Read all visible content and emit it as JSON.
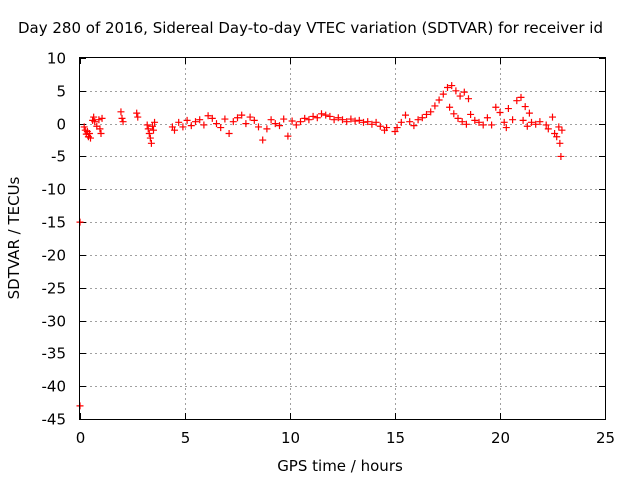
{
  "chart_data": {
    "type": "scatter",
    "title": "Day 280 of 2016, Sidereal Day-to-day VTEC variation (SDTVAR) for receiver id",
    "xlabel": "GPS time / hours",
    "ylabel": "SDTVAR / TECUs",
    "xlim": [
      0,
      25
    ],
    "ylim": [
      -45,
      10
    ],
    "xticks": [
      0,
      5,
      10,
      15,
      20,
      25
    ],
    "yticks": [
      10,
      5,
      0,
      -5,
      -10,
      -15,
      -20,
      -25,
      -30,
      -35,
      -40,
      -45
    ],
    "grid": true,
    "marker": "+",
    "series": [
      {
        "name": "SDTVAR",
        "color": "#ff0000",
        "points": [
          [
            0.0,
            -15.0
          ],
          [
            0.0,
            -43.0
          ],
          [
            0.2,
            -0.5
          ],
          [
            0.25,
            -1.0
          ],
          [
            0.3,
            -1.6
          ],
          [
            0.35,
            -1.2
          ],
          [
            0.4,
            -2.0
          ],
          [
            0.45,
            -1.5
          ],
          [
            0.5,
            -2.2
          ],
          [
            0.6,
            0.5
          ],
          [
            0.65,
            1.0
          ],
          [
            0.7,
            0.3
          ],
          [
            0.8,
            -0.4
          ],
          [
            0.9,
            0.6
          ],
          [
            0.95,
            -0.8
          ],
          [
            1.0,
            -1.5
          ],
          [
            1.05,
            0.8
          ],
          [
            1.95,
            1.8
          ],
          [
            2.0,
            0.8
          ],
          [
            2.05,
            0.3
          ],
          [
            2.7,
            1.6
          ],
          [
            2.75,
            1.0
          ],
          [
            3.2,
            -0.2
          ],
          [
            3.25,
            -0.8
          ],
          [
            3.3,
            -1.5
          ],
          [
            3.35,
            -2.2
          ],
          [
            3.4,
            -3.0
          ],
          [
            3.45,
            -0.4
          ],
          [
            3.5,
            -1.0
          ],
          [
            3.55,
            0.2
          ],
          [
            4.4,
            -0.5
          ],
          [
            4.5,
            -1.0
          ],
          [
            4.7,
            0.2
          ],
          [
            4.9,
            -0.5
          ],
          [
            5.1,
            0.5
          ],
          [
            5.3,
            -0.3
          ],
          [
            5.5,
            0.3
          ],
          [
            5.7,
            0.6
          ],
          [
            5.9,
            -0.2
          ],
          [
            6.1,
            1.2
          ],
          [
            6.3,
            0.8
          ],
          [
            6.5,
            0.0
          ],
          [
            6.7,
            -0.6
          ],
          [
            6.9,
            0.7
          ],
          [
            7.1,
            -1.5
          ],
          [
            7.3,
            0.3
          ],
          [
            7.5,
            0.9
          ],
          [
            7.7,
            1.3
          ],
          [
            7.9,
            0.0
          ],
          [
            8.1,
            1.0
          ],
          [
            8.3,
            0.5
          ],
          [
            8.5,
            -0.5
          ],
          [
            8.7,
            -2.5
          ],
          [
            8.9,
            -0.8
          ],
          [
            9.1,
            0.6
          ],
          [
            9.3,
            0.0
          ],
          [
            9.5,
            -0.3
          ],
          [
            9.7,
            0.7
          ],
          [
            9.9,
            -1.9
          ],
          [
            10.1,
            0.4
          ],
          [
            10.3,
            -0.2
          ],
          [
            10.5,
            0.3
          ],
          [
            10.7,
            0.8
          ],
          [
            10.9,
            0.6
          ],
          [
            11.1,
            1.1
          ],
          [
            11.3,
            0.9
          ],
          [
            11.5,
            1.5
          ],
          [
            11.7,
            1.3
          ],
          [
            11.9,
            1.1
          ],
          [
            12.1,
            0.6
          ],
          [
            12.3,
            0.9
          ],
          [
            12.5,
            0.6
          ],
          [
            12.7,
            0.3
          ],
          [
            12.9,
            0.7
          ],
          [
            13.1,
            0.4
          ],
          [
            13.3,
            0.5
          ],
          [
            13.5,
            0.2
          ],
          [
            13.7,
            0.3
          ],
          [
            13.9,
            -0.1
          ],
          [
            14.1,
            0.2
          ],
          [
            14.3,
            -0.4
          ],
          [
            14.5,
            -1.0
          ],
          [
            14.6,
            -0.6
          ],
          [
            15.0,
            -1.2
          ],
          [
            15.1,
            -0.6
          ],
          [
            15.3,
            0.2
          ],
          [
            15.5,
            1.3
          ],
          [
            15.7,
            0.3
          ],
          [
            15.9,
            -0.3
          ],
          [
            16.1,
            0.6
          ],
          [
            16.3,
            0.9
          ],
          [
            16.5,
            1.4
          ],
          [
            16.7,
            1.8
          ],
          [
            16.9,
            2.7
          ],
          [
            17.1,
            3.6
          ],
          [
            17.3,
            4.5
          ],
          [
            17.5,
            5.5
          ],
          [
            17.7,
            5.8
          ],
          [
            17.9,
            5.0
          ],
          [
            18.1,
            4.2
          ],
          [
            18.3,
            4.8
          ],
          [
            18.5,
            3.8
          ],
          [
            17.6,
            2.5
          ],
          [
            17.8,
            1.5
          ],
          [
            18.0,
            0.8
          ],
          [
            18.2,
            0.3
          ],
          [
            18.4,
            -0.1
          ],
          [
            18.6,
            1.4
          ],
          [
            18.8,
            0.5
          ],
          [
            19.0,
            0.2
          ],
          [
            19.2,
            -0.2
          ],
          [
            19.4,
            0.9
          ],
          [
            19.6,
            -0.2
          ],
          [
            19.8,
            2.5
          ],
          [
            20.0,
            1.7
          ],
          [
            20.2,
            0.2
          ],
          [
            20.3,
            -0.6
          ],
          [
            20.4,
            2.3
          ],
          [
            20.6,
            0.6
          ],
          [
            20.8,
            3.5
          ],
          [
            21.0,
            4.0
          ],
          [
            21.1,
            0.5
          ],
          [
            21.2,
            2.6
          ],
          [
            21.3,
            -0.4
          ],
          [
            21.4,
            1.6
          ],
          [
            21.5,
            0.2
          ],
          [
            21.7,
            -0.1
          ],
          [
            21.9,
            0.3
          ],
          [
            22.2,
            -0.2
          ],
          [
            22.3,
            -0.8
          ],
          [
            22.5,
            1.0
          ],
          [
            22.6,
            -1.5
          ],
          [
            22.7,
            -2.0
          ],
          [
            22.8,
            -0.5
          ],
          [
            22.85,
            -3.0
          ],
          [
            22.9,
            -5.0
          ],
          [
            22.95,
            -1.0
          ]
        ]
      }
    ]
  }
}
